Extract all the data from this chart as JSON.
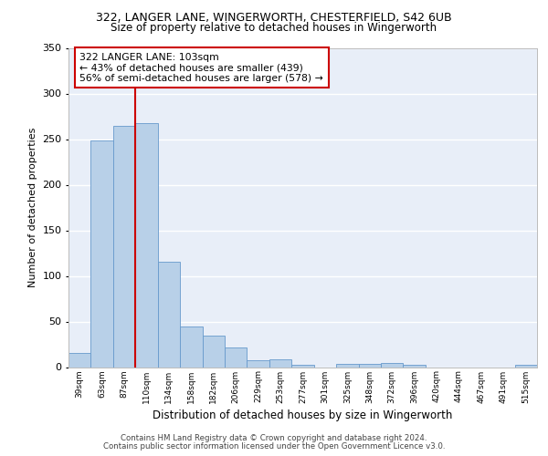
{
  "title_line1": "322, LANGER LANE, WINGERWORTH, CHESTERFIELD, S42 6UB",
  "title_line2": "Size of property relative to detached houses in Wingerworth",
  "xlabel": "Distribution of detached houses by size in Wingerworth",
  "ylabel": "Number of detached properties",
  "footer_line1": "Contains HM Land Registry data © Crown copyright and database right 2024.",
  "footer_line2": "Contains public sector information licensed under the Open Government Licence v3.0.",
  "annotation_line1": "322 LANGER LANE: 103sqm",
  "annotation_line2": "← 43% of detached houses are smaller (439)",
  "annotation_line3": "56% of semi-detached houses are larger (578) →",
  "bar_categories": [
    "39sqm",
    "63sqm",
    "87sqm",
    "110sqm",
    "134sqm",
    "158sqm",
    "182sqm",
    "206sqm",
    "229sqm",
    "253sqm",
    "277sqm",
    "301sqm",
    "325sqm",
    "348sqm",
    "372sqm",
    "396sqm",
    "420sqm",
    "444sqm",
    "467sqm",
    "491sqm",
    "515sqm"
  ],
  "bar_values": [
    16,
    249,
    265,
    268,
    116,
    45,
    35,
    22,
    8,
    9,
    3,
    0,
    4,
    4,
    5,
    3,
    0,
    0,
    0,
    0,
    3
  ],
  "bar_color": "#b8d0e8",
  "bar_edge_color": "#6699cc",
  "background_color": "#e8eef8",
  "grid_color": "#ffffff",
  "vline_color": "#cc0000",
  "vline_x_index": 2.5,
  "annotation_box_edgecolor": "#cc0000",
  "ylim": [
    0,
    350
  ],
  "yticks": [
    0,
    50,
    100,
    150,
    200,
    250,
    300,
    350
  ]
}
